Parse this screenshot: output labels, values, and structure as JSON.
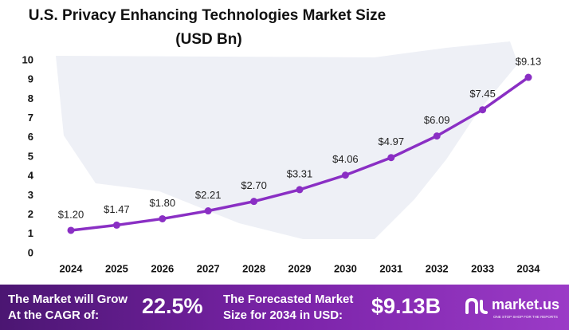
{
  "chart_data": {
    "type": "line",
    "title": "U.S. Privacy Enhancing Technologies Market Size",
    "subtitle": "(USD Bn)",
    "categories": [
      "2024",
      "2025",
      "2026",
      "2027",
      "2028",
      "2029",
      "2030",
      "2031",
      "2032",
      "2033",
      "2034"
    ],
    "values": [
      1.2,
      1.47,
      1.8,
      2.21,
      2.7,
      3.31,
      4.06,
      4.97,
      6.09,
      7.45,
      9.13
    ],
    "value_labels": [
      "$1.20",
      "$1.47",
      "$1.80",
      "$2.21",
      "$2.70",
      "$3.31",
      "$4.06",
      "$4.97",
      "$6.09",
      "$7.45",
      "$9.13"
    ],
    "color": "#8a2fc4",
    "ylim": [
      0,
      10
    ],
    "yticks": [
      0,
      1,
      2,
      3,
      4,
      5,
      6,
      7,
      8,
      9,
      10
    ],
    "grid": false
  },
  "footer": {
    "cagr_label": [
      "The Market will Grow",
      "At the CAGR of:"
    ],
    "cagr_value": "22.5%",
    "forecast_label": [
      "The Forecasted Market",
      "Size for 2034 in USD:"
    ],
    "forecast_value": "$9.13B",
    "brand": "market.us",
    "tagline": "ONE STOP SHOP FOR THE REPORTS"
  }
}
